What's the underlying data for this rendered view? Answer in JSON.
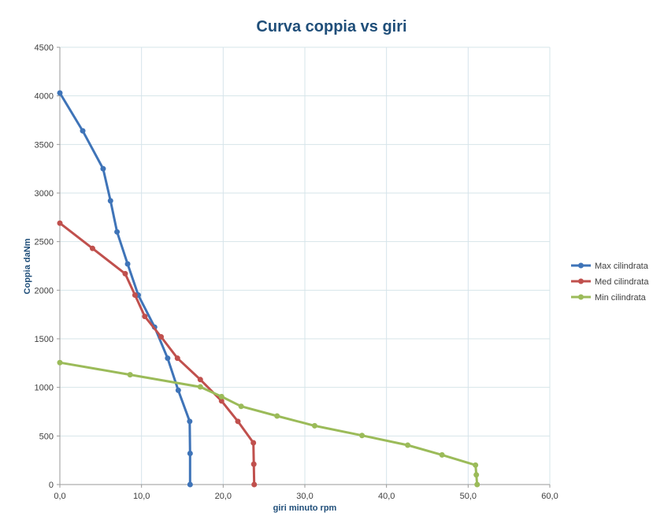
{
  "chart_data": {
    "type": "scatter",
    "title": "Curva coppia vs giri",
    "xlabel": "giri minuto rpm",
    "ylabel": "Coppia daNm",
    "xlim": [
      0,
      60
    ],
    "ylim": [
      0,
      4500
    ],
    "x_ticks": [
      "0,0",
      "10,0",
      "20,0",
      "30,0",
      "40,0",
      "50,0",
      "60,0"
    ],
    "y_ticks": [
      "0",
      "500",
      "1000",
      "1500",
      "2000",
      "2500",
      "3000",
      "3500",
      "4000",
      "4500"
    ],
    "grid": true,
    "legend_position": "right",
    "series": [
      {
        "name": "Max cilindrata",
        "color": "#3f74b8",
        "x": [
          0.0,
          2.8,
          5.3,
          6.2,
          7.0,
          8.3,
          9.6,
          11.6,
          13.2,
          14.5,
          15.9,
          15.95,
          15.95
        ],
        "y": [
          4030,
          3640,
          3250,
          2920,
          2600,
          2270,
          1950,
          1620,
          1300,
          970,
          650,
          320,
          0
        ]
      },
      {
        "name": "Med cilindrata",
        "color": "#c0504d",
        "x": [
          0.0,
          4.0,
          8.0,
          9.2,
          10.4,
          12.4,
          14.4,
          17.2,
          19.8,
          21.8,
          23.7,
          23.75,
          23.8
        ],
        "y": [
          2690,
          2430,
          2170,
          1950,
          1730,
          1520,
          1300,
          1080,
          860,
          650,
          430,
          210,
          0
        ]
      },
      {
        "name": "Min cilindrata",
        "color": "#9bbb59",
        "x": [
          0.0,
          8.6,
          17.2,
          19.8,
          22.2,
          26.6,
          31.2,
          37.0,
          42.6,
          46.8,
          50.9,
          51.0,
          51.1
        ],
        "y": [
          1255,
          1130,
          1005,
          905,
          805,
          705,
          605,
          505,
          405,
          305,
          200,
          100,
          0
        ]
      }
    ]
  }
}
